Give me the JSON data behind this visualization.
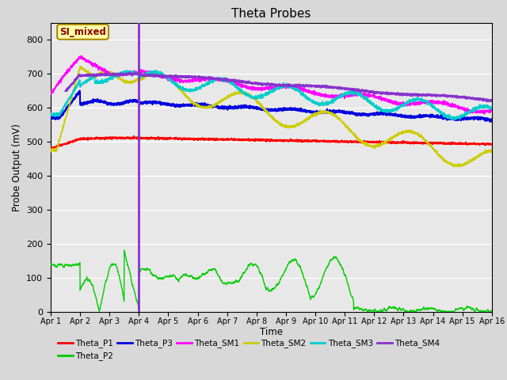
{
  "title": "Theta Probes",
  "ylabel": "Probe Output (mV)",
  "xlabel": "Time",
  "ylim": [
    0,
    850
  ],
  "yticks": [
    0,
    100,
    200,
    300,
    400,
    500,
    600,
    700,
    800
  ],
  "xtick_labels": [
    "Apr 1",
    "Apr 2",
    "Apr 3",
    "Apr 4",
    "Apr 5",
    "Apr 6",
    "Apr 7",
    "Apr 8",
    "Apr 9",
    "Apr 10",
    "Apr 11",
    "Apr 12",
    "Apr 13",
    "Apr 14",
    "Apr 15",
    "Apr 16"
  ],
  "annotation_label": "SI_mixed",
  "vline_x": 3.0,
  "colors": {
    "Theta_P1": "#ff0000",
    "Theta_P2": "#00cc00",
    "Theta_P3": "#0000dd",
    "Theta_SM1": "#ff00ff",
    "Theta_SM2": "#cccc00",
    "Theta_SM3": "#00cccc",
    "Theta_SM4": "#8833cc"
  },
  "bg_color": "#e8e8e8",
  "fig_bg": "#d8d8d8"
}
